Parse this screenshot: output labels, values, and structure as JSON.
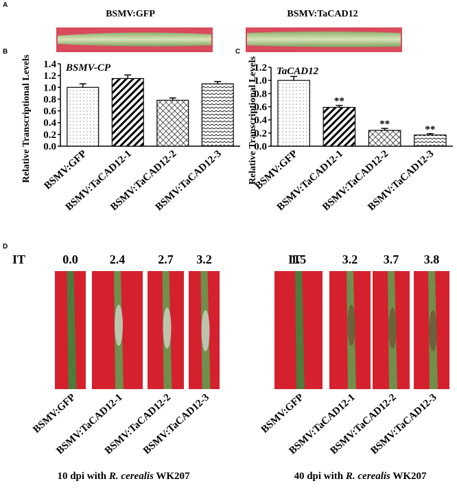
{
  "panel_labels": [
    "A",
    "B",
    "C",
    "D"
  ],
  "panel_a": {
    "images": [
      "BSMV:GFP",
      "BSMV:TaCAD12"
    ]
  },
  "chart_data": [
    {
      "type": "bar",
      "title": "BSMV-CP",
      "ylabel": "Relative Transcriptional Levels",
      "categories": [
        "BSMV:GFP",
        "BSMV:TaCAD12-1",
        "BSMV:TaCAD12-2",
        "BSMV:TaCAD12-3"
      ],
      "values": [
        1.0,
        1.15,
        0.78,
        1.06
      ],
      "errors": [
        0.06,
        0.06,
        0.04,
        0.04
      ],
      "ylim": [
        0,
        1.4
      ],
      "yticks": [
        {
          "value": 0,
          "label": "0.0"
        },
        {
          "value": 0.2,
          "label": "0.2"
        },
        {
          "value": 0.4,
          "label": "0.4"
        },
        {
          "value": 0.6,
          "label": "0.6"
        },
        {
          "value": 0.8,
          "label": "0.8"
        },
        {
          "value": 1,
          "label": "1.0"
        },
        {
          "value": 1.2,
          "label": "1.2"
        },
        {
          "value": 1.4,
          "label": "1.4"
        }
      ],
      "color": "#000000"
    },
    {
      "type": "bar",
      "title": "TaCAD12",
      "ylabel": "Relative Transcriptional Levels",
      "categories": [
        "BSMV:GFP",
        "BSMV:TaCAD12-1",
        "BSMV:TaCAD12-2",
        "BSMV:TaCAD12-3"
      ],
      "values": [
        1.0,
        0.59,
        0.24,
        0.17
      ],
      "errors": [
        0.06,
        0.03,
        0.03,
        0.02
      ],
      "ylim": [
        0,
        1.2
      ],
      "yticks": [
        {
          "value": 0,
          "label": "0.0"
        },
        {
          "value": 0.2,
          "label": "0.2"
        },
        {
          "value": 0.4,
          "label": "0.4"
        },
        {
          "value": 0.6,
          "label": "0.6"
        },
        {
          "value": 0.8,
          "label": "0.8"
        },
        {
          "value": 1,
          "label": "1.0"
        },
        {
          "value": 1.2,
          "label": "1.2"
        }
      ],
      "annotations": [
        {
          "index": 1,
          "text": "**"
        },
        {
          "index": 2,
          "text": "**"
        },
        {
          "index": 3,
          "text": "**"
        }
      ],
      "color": "#000000"
    }
  ],
  "panel_d": {
    "it_label": "IT",
    "groups": [
      {
        "scores": [
          "0.0",
          "2.4",
          "2.7",
          "3.2"
        ],
        "labels": [
          "BSMV:GFP",
          "BSMV:TaCAD12-1",
          "BSMV:TaCAD12-2",
          "BSMV:TaCAD12-3"
        ],
        "caption": [
          "10 dpi with ",
          "R. cerealis",
          " WK207"
        ]
      },
      {
        "scores": [
          "1.5",
          "3.2",
          "3.7",
          "3.8"
        ],
        "labels": [
          "BSMV:GFP",
          "BSMV:TaCAD12-1",
          "BSMV:TaCAD12-2",
          "BSMV:TaCAD12-3"
        ],
        "caption": [
          "40 dpi with ",
          "R. cerealis",
          " WK207"
        ]
      }
    ]
  }
}
